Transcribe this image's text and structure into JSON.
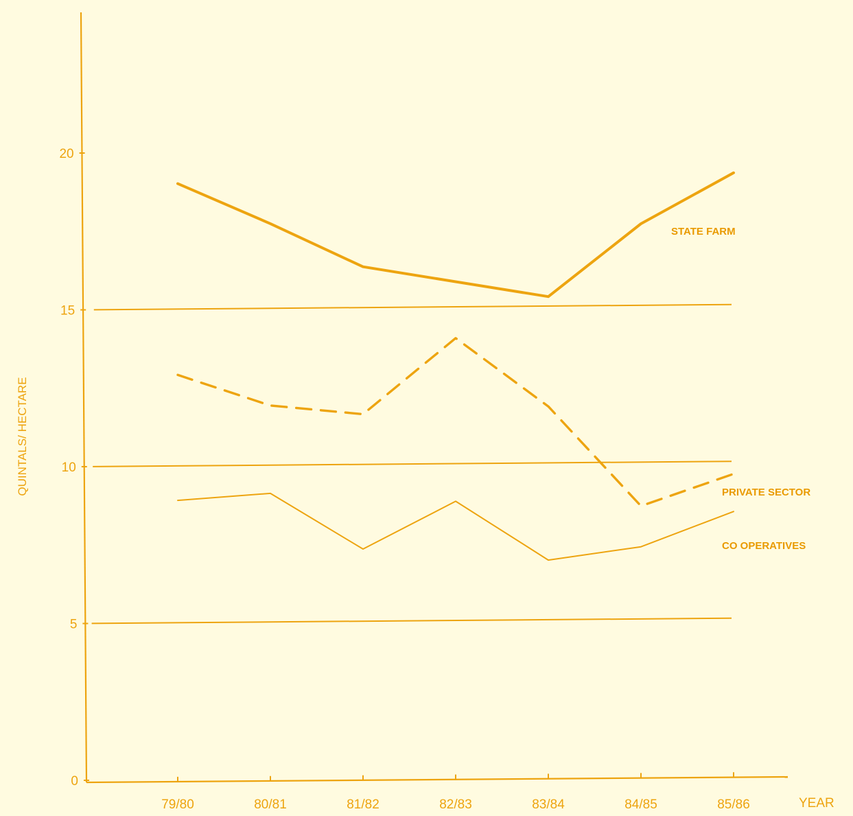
{
  "chart_data": {
    "type": "line",
    "title": "",
    "xlabel": "YEAR",
    "ylabel": "QUINTALS/ HECTARE",
    "categories": [
      "79/80",
      "80/81",
      "81/82",
      "82/83",
      "83/84",
      "84/85",
      "85/86"
    ],
    "ylim": [
      0,
      25
    ],
    "yticks": [
      "0",
      "5",
      "10",
      "15",
      "20"
    ],
    "grid": "horizontal at 5, 10, 15",
    "legend": "labels at right end of each series",
    "series": [
      {
        "name": "STATE FARM",
        "values": [
          19.0,
          17.7,
          16.3,
          15.8,
          15.3,
          17.6,
          19.2
        ],
        "style": "solid",
        "weight": "thick"
      },
      {
        "name": "PRIVATE SECTOR",
        "values": [
          12.9,
          11.9,
          11.6,
          14.0,
          11.8,
          8.6,
          9.6
        ],
        "style": "dashed",
        "weight": "medium"
      },
      {
        "name": "CO OPERATIVES",
        "values": [
          8.9,
          9.1,
          7.3,
          8.8,
          6.9,
          7.3,
          8.4
        ],
        "style": "solid",
        "weight": "thin"
      }
    ],
    "color": "#eda410"
  }
}
